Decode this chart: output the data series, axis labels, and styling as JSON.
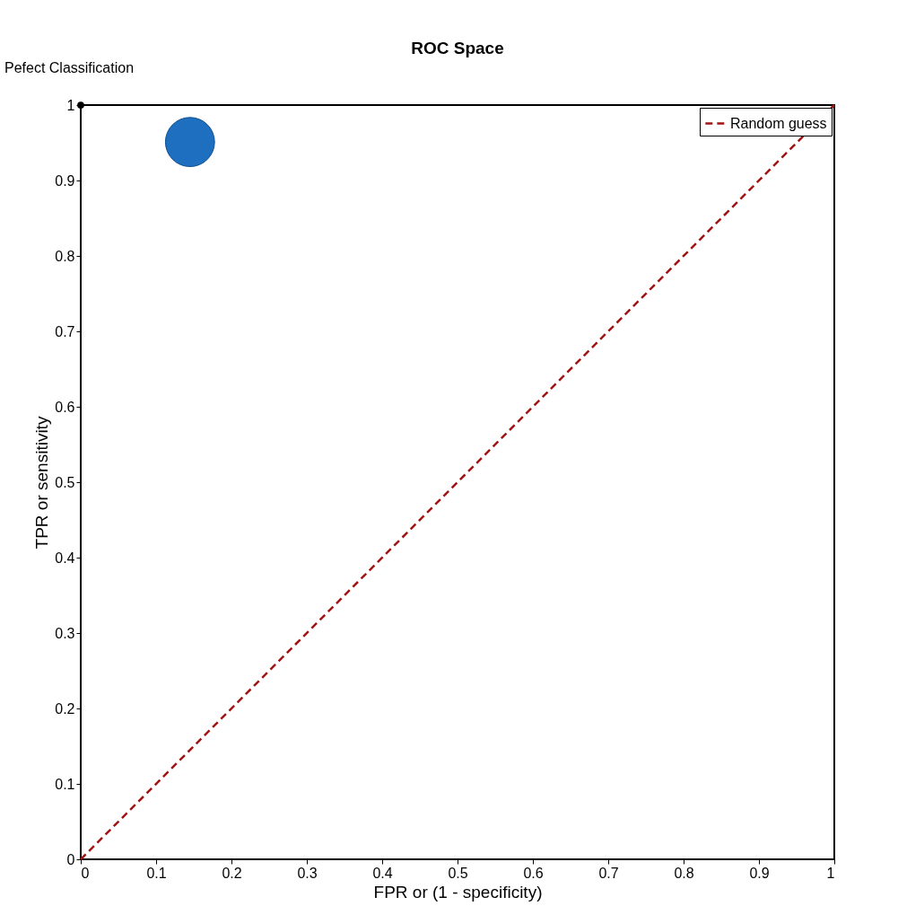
{
  "chart_data": {
    "type": "scatter",
    "title": "ROC Space",
    "xlabel": "FPR or (1 - specificity)",
    "ylabel": "TPR or sensitivity",
    "xlim": [
      0,
      1
    ],
    "ylim": [
      0,
      1
    ],
    "xticks": [
      0,
      0.1,
      0.2,
      0.3,
      0.4,
      0.5,
      0.6,
      0.7,
      0.8,
      0.9,
      1
    ],
    "yticks": [
      0,
      0.1,
      0.2,
      0.3,
      0.4,
      0.5,
      0.6,
      0.7,
      0.8,
      0.9,
      1
    ],
    "grid": false,
    "legend": "top right",
    "series": [
      {
        "name": "Random guess",
        "type": "line",
        "line_style": "dashed",
        "color": "#a01414",
        "x": [
          0,
          1
        ],
        "values": [
          0,
          1
        ]
      },
      {
        "type": "bubble",
        "marker": "circle",
        "color": "#1f6fc0",
        "x": [
          0.145
        ],
        "values": [
          0.951
        ],
        "sizes": [
          1
        ]
      },
      {
        "marker": "circle",
        "color": "#000000",
        "x": [
          0
        ],
        "values": [
          1
        ]
      }
    ],
    "annotations": [
      {
        "text": "Pefect Classification",
        "x": 0,
        "y": 1
      }
    ]
  }
}
